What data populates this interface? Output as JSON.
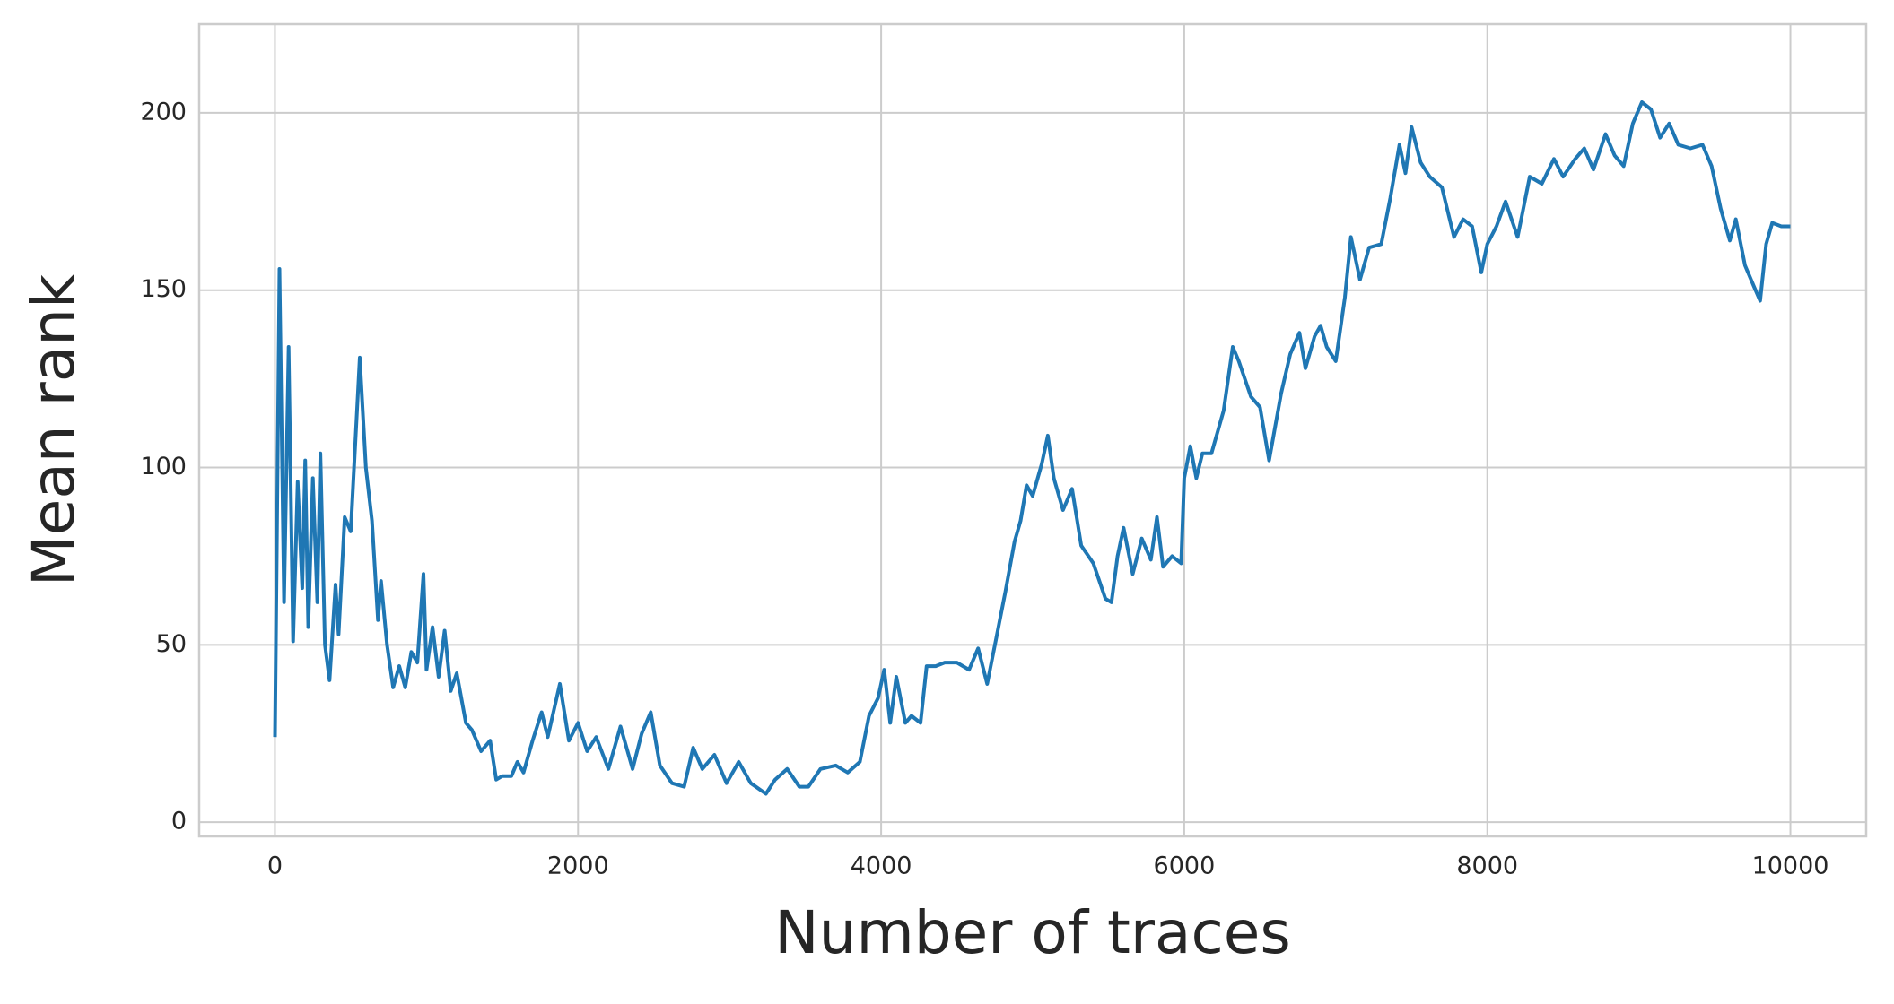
{
  "chart_data": {
    "type": "line",
    "x_label": "Number of traces",
    "y_label": "Mean rank",
    "x": [
      0,
      30,
      60,
      90,
      120,
      150,
      180,
      200,
      220,
      250,
      280,
      300,
      330,
      360,
      400,
      420,
      460,
      500,
      560,
      600,
      640,
      680,
      700,
      740,
      780,
      820,
      860,
      900,
      940,
      980,
      1000,
      1040,
      1080,
      1120,
      1160,
      1200,
      1260,
      1300,
      1360,
      1420,
      1460,
      1500,
      1560,
      1600,
      1640,
      1700,
      1760,
      1800,
      1880,
      1940,
      2000,
      2060,
      2120,
      2200,
      2280,
      2360,
      2420,
      2480,
      2540,
      2620,
      2700,
      2760,
      2820,
      2900,
      2980,
      3060,
      3140,
      3240,
      3300,
      3380,
      3460,
      3520,
      3600,
      3700,
      3780,
      3860,
      3920,
      3980,
      4020,
      4060,
      4100,
      4160,
      4200,
      4260,
      4300,
      4360,
      4420,
      4500,
      4580,
      4640,
      4700,
      4760,
      4820,
      4880,
      4920,
      4960,
      5000,
      5060,
      5100,
      5140,
      5200,
      5260,
      5320,
      5400,
      5480,
      5520,
      5560,
      5600,
      5660,
      5720,
      5780,
      5820,
      5860,
      5920,
      5980,
      6000,
      6040,
      6080,
      6120,
      6180,
      6260,
      6320,
      6360,
      6440,
      6500,
      6560,
      6640,
      6700,
      6760,
      6800,
      6860,
      6900,
      6940,
      7000,
      7060,
      7100,
      7160,
      7220,
      7300,
      7360,
      7420,
      7460,
      7500,
      7560,
      7620,
      7700,
      7780,
      7840,
      7900,
      7960,
      8000,
      8060,
      8120,
      8200,
      8280,
      8360,
      8440,
      8500,
      8580,
      8640,
      8700,
      8780,
      8840,
      8900,
      8960,
      9020,
      9080,
      9140,
      9200,
      9260,
      9340,
      9420,
      9480,
      9540,
      9600,
      9640,
      9700,
      9760,
      9800,
      9840,
      9880,
      9940,
      10000
    ],
    "series": [
      {
        "name": "Mean rank",
        "color": "#1f77b4",
        "values": [
          24,
          156,
          62,
          134,
          51,
          96,
          66,
          102,
          55,
          97,
          62,
          104,
          50,
          40,
          67,
          53,
          86,
          82,
          131,
          100,
          85,
          57,
          68,
          50,
          38,
          44,
          38,
          48,
          45,
          70,
          43,
          55,
          41,
          54,
          37,
          42,
          28,
          26,
          20,
          23,
          12,
          13,
          13,
          17,
          14,
          23,
          31,
          24,
          39,
          23,
          28,
          20,
          24,
          15,
          27,
          15,
          25,
          31,
          16,
          11,
          10,
          21,
          15,
          19,
          11,
          17,
          11,
          8,
          12,
          15,
          10,
          10,
          15,
          16,
          14,
          17,
          30,
          35,
          43,
          28,
          41,
          28,
          30,
          28,
          44,
          44,
          45,
          45,
          43,
          49,
          39,
          52,
          65,
          79,
          85,
          95,
          92,
          101,
          109,
          97,
          88,
          94,
          78,
          73,
          63,
          62,
          75,
          83,
          70,
          80,
          74,
          86,
          72,
          75,
          73,
          97,
          106,
          97,
          104,
          104,
          116,
          134,
          130,
          120,
          117,
          102,
          121,
          132,
          138,
          128,
          137,
          140,
          134,
          130,
          148,
          165,
          153,
          162,
          163,
          176,
          191,
          183,
          196,
          186,
          182,
          179,
          165,
          170,
          168,
          155,
          163,
          168,
          175,
          165,
          182,
          180,
          187,
          182,
          187,
          190,
          184,
          194,
          188,
          185,
          197,
          203,
          201,
          193,
          197,
          191,
          190,
          191,
          185,
          173,
          164,
          170,
          157,
          151,
          147,
          163,
          169,
          168,
          168
        ]
      }
    ],
    "xlim": [
      -500,
      10500
    ],
    "ylim": [
      -4,
      225
    ],
    "xticks": [
      0,
      2000,
      4000,
      6000,
      8000,
      10000
    ],
    "yticks": [
      0,
      50,
      100,
      150,
      200
    ],
    "grid": true
  }
}
